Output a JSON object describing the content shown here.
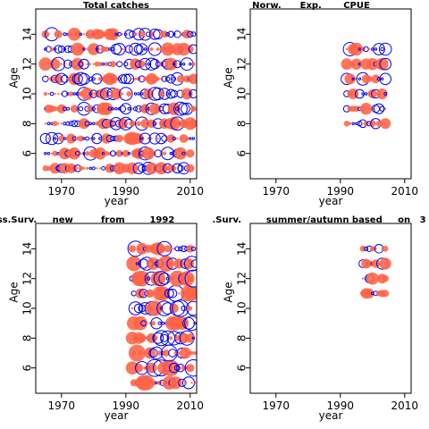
{
  "colors": {
    "negative": "#ff6347",
    "positive": "#0000ee",
    "axis": "#000000"
  },
  "chart_data": [
    {
      "type": "scatter",
      "title": "Total catches",
      "xlabel": "year",
      "ylabel": "Age",
      "xlim": [
        1962,
        2012
      ],
      "ylim": [
        4.3,
        15.7
      ],
      "xticks": [
        1970,
        1990,
        2010
      ],
      "yticks": [
        6,
        8,
        10,
        12,
        14
      ],
      "years": [
        1965,
        2011
      ],
      "ages": [
        5,
        14
      ],
      "stagger": 0,
      "seed": 11,
      "max_radius": 7.5
    },
    {
      "type": "scatter",
      "title": "Norw.      Exp.       CPUE",
      "xlabel": "year",
      "ylabel": "Age",
      "xlim": [
        1962,
        2012
      ],
      "ylim": [
        4.3,
        15.7
      ],
      "xticks": [
        1970,
        1990,
        2010
      ],
      "yticks": [
        6,
        8,
        10,
        12,
        14
      ],
      "years": [
        1992,
        2004
      ],
      "ages": [
        8,
        13
      ],
      "stagger": 0,
      "seed": 23,
      "max_radius": 7.5
    },
    {
      "type": "scatter",
      "title": "ss.Surv.     new         from        1992",
      "xlabel": "year",
      "ylabel": "Age",
      "xlim": [
        1962,
        2012
      ],
      "ylim": [
        4.3,
        15.7
      ],
      "xticks": [
        1970,
        1990,
        2010
      ],
      "yticks": [
        6,
        8,
        10,
        12,
        14
      ],
      "years": [
        1992,
        2011
      ],
      "ages": [
        5,
        14
      ],
      "stagger": 1,
      "seed": 37,
      "max_radius": 9.5
    },
    {
      "type": "scatter",
      "title": ".Surv.        summer/autumn based     on   3",
      "xlabel": "year",
      "ylabel": "Age",
      "xlim": [
        1962,
        2012
      ],
      "ylim": [
        4.3,
        15.7
      ],
      "xticks": [
        1970,
        1990,
        2010
      ],
      "yticks": [
        6,
        8,
        10,
        12,
        14
      ],
      "years": [
        1997,
        2004
      ],
      "ages": [
        11,
        14
      ],
      "stagger": 0,
      "seed": 53,
      "max_radius": 7.5
    }
  ]
}
